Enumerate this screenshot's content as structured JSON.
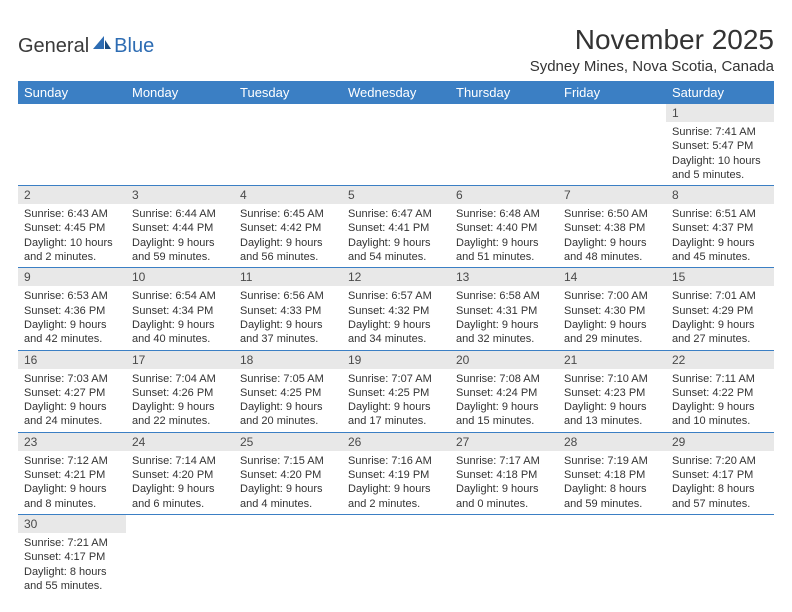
{
  "logo": {
    "part1": "General",
    "part2": "Blue"
  },
  "title": "November 2025",
  "location": "Sydney Mines, Nova Scotia, Canada",
  "colors": {
    "header_bg": "#3b7fc4",
    "header_text": "#ffffff",
    "daynum_bg": "#e8e8e8",
    "border": "#3b7fc4",
    "text": "#333333"
  },
  "day_names": [
    "Sunday",
    "Monday",
    "Tuesday",
    "Wednesday",
    "Thursday",
    "Friday",
    "Saturday"
  ],
  "weeks": [
    [
      null,
      null,
      null,
      null,
      null,
      null,
      {
        "n": "1",
        "sr": "Sunrise: 7:41 AM",
        "ss": "Sunset: 5:47 PM",
        "dl": "Daylight: 10 hours and 5 minutes."
      }
    ],
    [
      {
        "n": "2",
        "sr": "Sunrise: 6:43 AM",
        "ss": "Sunset: 4:45 PM",
        "dl": "Daylight: 10 hours and 2 minutes."
      },
      {
        "n": "3",
        "sr": "Sunrise: 6:44 AM",
        "ss": "Sunset: 4:44 PM",
        "dl": "Daylight: 9 hours and 59 minutes."
      },
      {
        "n": "4",
        "sr": "Sunrise: 6:45 AM",
        "ss": "Sunset: 4:42 PM",
        "dl": "Daylight: 9 hours and 56 minutes."
      },
      {
        "n": "5",
        "sr": "Sunrise: 6:47 AM",
        "ss": "Sunset: 4:41 PM",
        "dl": "Daylight: 9 hours and 54 minutes."
      },
      {
        "n": "6",
        "sr": "Sunrise: 6:48 AM",
        "ss": "Sunset: 4:40 PM",
        "dl": "Daylight: 9 hours and 51 minutes."
      },
      {
        "n": "7",
        "sr": "Sunrise: 6:50 AM",
        "ss": "Sunset: 4:38 PM",
        "dl": "Daylight: 9 hours and 48 minutes."
      },
      {
        "n": "8",
        "sr": "Sunrise: 6:51 AM",
        "ss": "Sunset: 4:37 PM",
        "dl": "Daylight: 9 hours and 45 minutes."
      }
    ],
    [
      {
        "n": "9",
        "sr": "Sunrise: 6:53 AM",
        "ss": "Sunset: 4:36 PM",
        "dl": "Daylight: 9 hours and 42 minutes."
      },
      {
        "n": "10",
        "sr": "Sunrise: 6:54 AM",
        "ss": "Sunset: 4:34 PM",
        "dl": "Daylight: 9 hours and 40 minutes."
      },
      {
        "n": "11",
        "sr": "Sunrise: 6:56 AM",
        "ss": "Sunset: 4:33 PM",
        "dl": "Daylight: 9 hours and 37 minutes."
      },
      {
        "n": "12",
        "sr": "Sunrise: 6:57 AM",
        "ss": "Sunset: 4:32 PM",
        "dl": "Daylight: 9 hours and 34 minutes."
      },
      {
        "n": "13",
        "sr": "Sunrise: 6:58 AM",
        "ss": "Sunset: 4:31 PM",
        "dl": "Daylight: 9 hours and 32 minutes."
      },
      {
        "n": "14",
        "sr": "Sunrise: 7:00 AM",
        "ss": "Sunset: 4:30 PM",
        "dl": "Daylight: 9 hours and 29 minutes."
      },
      {
        "n": "15",
        "sr": "Sunrise: 7:01 AM",
        "ss": "Sunset: 4:29 PM",
        "dl": "Daylight: 9 hours and 27 minutes."
      }
    ],
    [
      {
        "n": "16",
        "sr": "Sunrise: 7:03 AM",
        "ss": "Sunset: 4:27 PM",
        "dl": "Daylight: 9 hours and 24 minutes."
      },
      {
        "n": "17",
        "sr": "Sunrise: 7:04 AM",
        "ss": "Sunset: 4:26 PM",
        "dl": "Daylight: 9 hours and 22 minutes."
      },
      {
        "n": "18",
        "sr": "Sunrise: 7:05 AM",
        "ss": "Sunset: 4:25 PM",
        "dl": "Daylight: 9 hours and 20 minutes."
      },
      {
        "n": "19",
        "sr": "Sunrise: 7:07 AM",
        "ss": "Sunset: 4:25 PM",
        "dl": "Daylight: 9 hours and 17 minutes."
      },
      {
        "n": "20",
        "sr": "Sunrise: 7:08 AM",
        "ss": "Sunset: 4:24 PM",
        "dl": "Daylight: 9 hours and 15 minutes."
      },
      {
        "n": "21",
        "sr": "Sunrise: 7:10 AM",
        "ss": "Sunset: 4:23 PM",
        "dl": "Daylight: 9 hours and 13 minutes."
      },
      {
        "n": "22",
        "sr": "Sunrise: 7:11 AM",
        "ss": "Sunset: 4:22 PM",
        "dl": "Daylight: 9 hours and 10 minutes."
      }
    ],
    [
      {
        "n": "23",
        "sr": "Sunrise: 7:12 AM",
        "ss": "Sunset: 4:21 PM",
        "dl": "Daylight: 9 hours and 8 minutes."
      },
      {
        "n": "24",
        "sr": "Sunrise: 7:14 AM",
        "ss": "Sunset: 4:20 PM",
        "dl": "Daylight: 9 hours and 6 minutes."
      },
      {
        "n": "25",
        "sr": "Sunrise: 7:15 AM",
        "ss": "Sunset: 4:20 PM",
        "dl": "Daylight: 9 hours and 4 minutes."
      },
      {
        "n": "26",
        "sr": "Sunrise: 7:16 AM",
        "ss": "Sunset: 4:19 PM",
        "dl": "Daylight: 9 hours and 2 minutes."
      },
      {
        "n": "27",
        "sr": "Sunrise: 7:17 AM",
        "ss": "Sunset: 4:18 PM",
        "dl": "Daylight: 9 hours and 0 minutes."
      },
      {
        "n": "28",
        "sr": "Sunrise: 7:19 AM",
        "ss": "Sunset: 4:18 PM",
        "dl": "Daylight: 8 hours and 59 minutes."
      },
      {
        "n": "29",
        "sr": "Sunrise: 7:20 AM",
        "ss": "Sunset: 4:17 PM",
        "dl": "Daylight: 8 hours and 57 minutes."
      }
    ],
    [
      {
        "n": "30",
        "sr": "Sunrise: 7:21 AM",
        "ss": "Sunset: 4:17 PM",
        "dl": "Daylight: 8 hours and 55 minutes."
      },
      null,
      null,
      null,
      null,
      null,
      null
    ]
  ]
}
